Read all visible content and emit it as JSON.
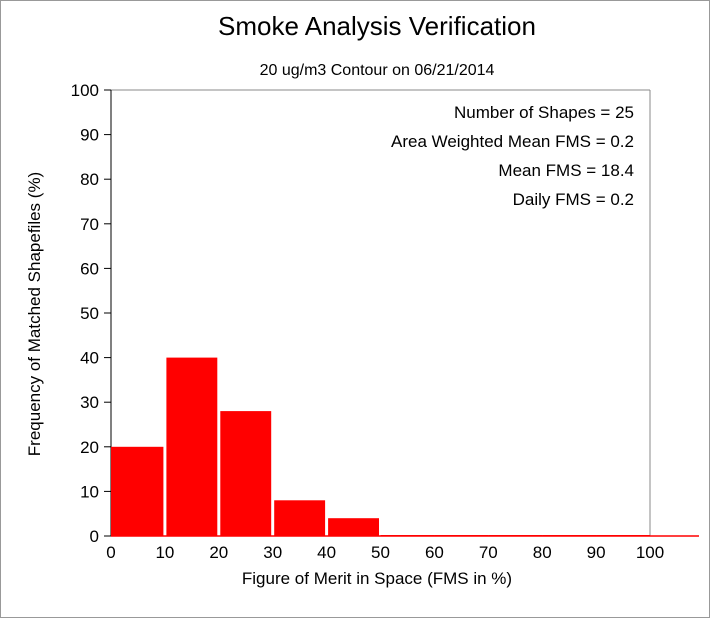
{
  "chart_data": {
    "type": "bar",
    "title": "Smoke Analysis Verification",
    "subtitle": "20 ug/m3 Contour on 06/21/2014",
    "xlabel": "Figure of Merit in Space (FMS in %)",
    "ylabel": "Frequency of Matched Shapefiles (%)",
    "xlim": [
      0,
      100
    ],
    "ylim": [
      0,
      100
    ],
    "x_ticks": [
      "0",
      "10",
      "20",
      "30",
      "40",
      "50",
      "60",
      "70",
      "80",
      "90",
      "100"
    ],
    "y_ticks": [
      "0",
      "10",
      "20",
      "30",
      "40",
      "50",
      "60",
      "70",
      "80",
      "90",
      "100"
    ],
    "bin_width": 10,
    "bins": [
      0,
      10,
      20,
      30,
      40,
      50,
      60,
      70,
      80,
      90
    ],
    "values": [
      20,
      40,
      28,
      8,
      4,
      0,
      0,
      0,
      0,
      0
    ],
    "bar_color": "#ff0000",
    "grid": false,
    "annotations": [
      "Number of Shapes = 25",
      "Area Weighted Mean FMS = 0.2",
      "Mean FMS = 18.4",
      "Daily FMS = 0.2"
    ]
  }
}
